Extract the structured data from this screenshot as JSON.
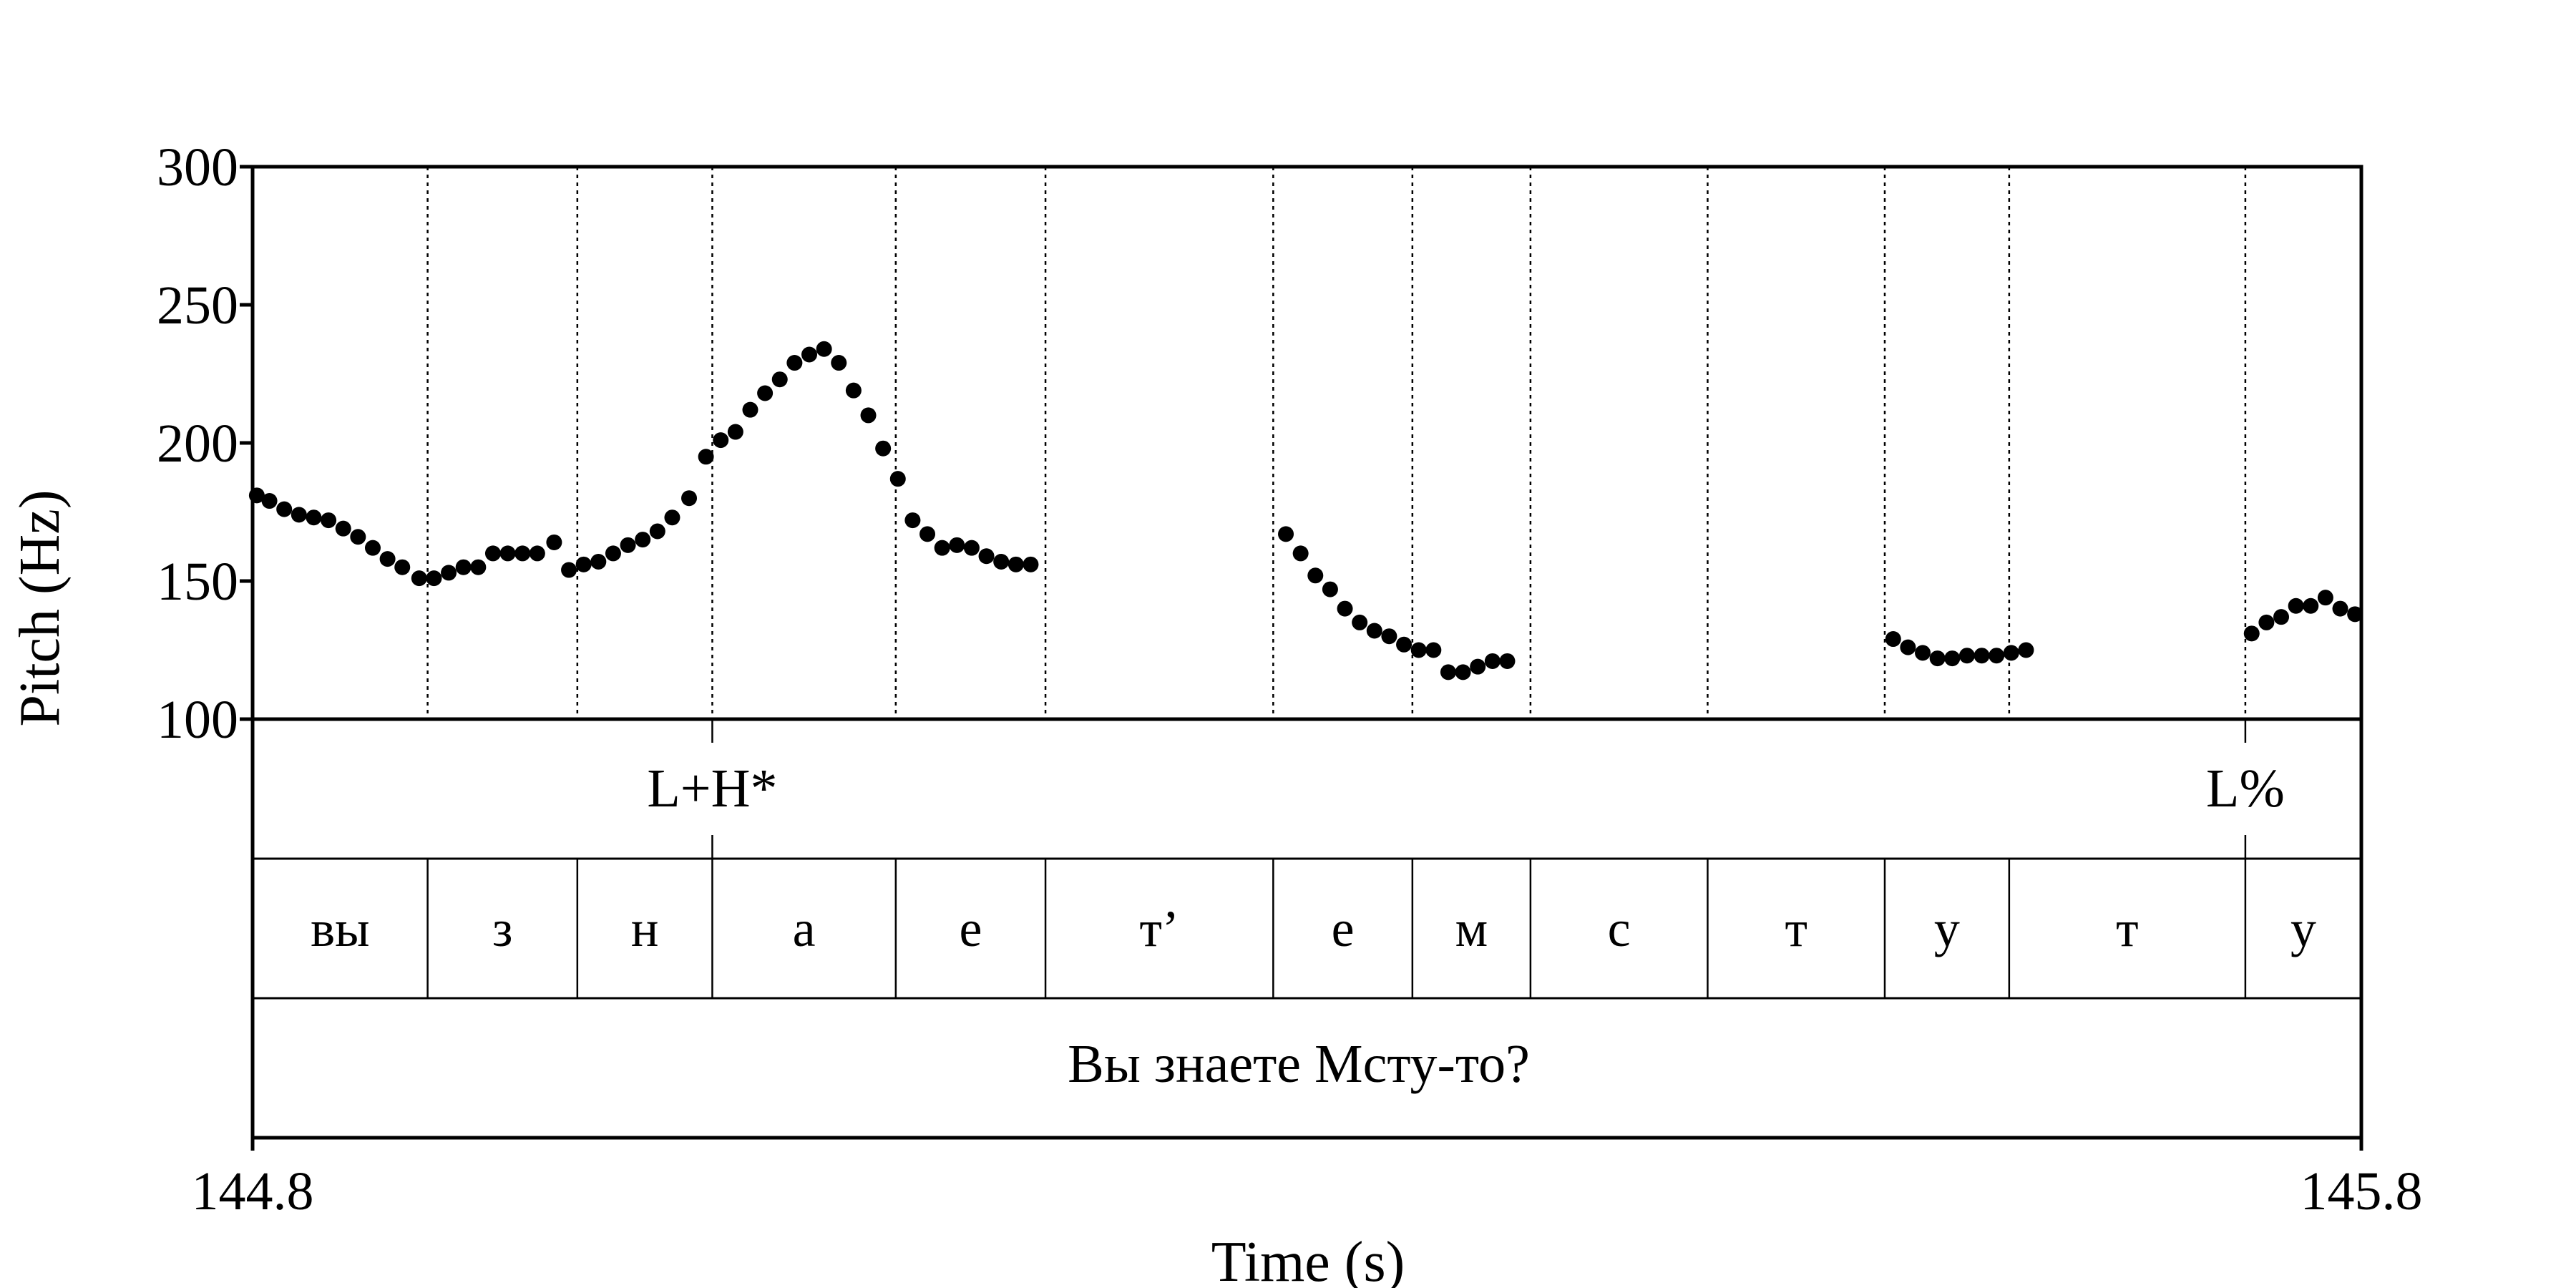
{
  "chart_data": {
    "type": "scatter",
    "title": "",
    "xlabel": "Time (s)",
    "ylabel": "Pitch (Hz)",
    "xlim": [
      144.8,
      145.8
    ],
    "ylim": [
      100,
      300
    ],
    "x_ticks": [
      "144.8",
      "145.8"
    ],
    "y_ticks": [
      "100",
      "150",
      "200",
      "250",
      "300"
    ],
    "grid": false,
    "boundaries": [
      144.883,
      144.954,
      145.018,
      145.105,
      145.176,
      145.284,
      145.35,
      145.406,
      145.49,
      145.574,
      145.633,
      145.745
    ],
    "tones": [
      {
        "label": "L+H*",
        "time": 145.018
      },
      {
        "label": "L%",
        "time": 145.745
      }
    ],
    "segments": [
      "вы",
      "з",
      "н",
      "а",
      "е",
      "т’",
      "е",
      "м",
      "с",
      "т",
      "у",
      "т",
      "у"
    ],
    "sentence": "Вы знаете Мсту-то?",
    "series": [
      {
        "points": [
          [
            144.802,
            181
          ],
          [
            144.808,
            179
          ],
          [
            144.815,
            176
          ],
          [
            144.822,
            174
          ],
          [
            144.829,
            173
          ],
          [
            144.836,
            172
          ],
          [
            144.843,
            169
          ],
          [
            144.85,
            166
          ],
          [
            144.857,
            162
          ],
          [
            144.864,
            158
          ],
          [
            144.871,
            155
          ],
          [
            144.879,
            151
          ],
          [
            144.886,
            151
          ],
          [
            144.893,
            153
          ],
          [
            144.9,
            155
          ],
          [
            144.907,
            155
          ],
          [
            144.914,
            160
          ],
          [
            144.921,
            160
          ],
          [
            144.928,
            160
          ],
          [
            144.935,
            160
          ],
          [
            144.943,
            164
          ],
          [
            144.95,
            154
          ],
          [
            144.957,
            156
          ],
          [
            144.964,
            157
          ],
          [
            144.971,
            160
          ],
          [
            144.978,
            163
          ],
          [
            144.985,
            165
          ],
          [
            144.992,
            168
          ],
          [
            144.999,
            173
          ],
          [
            145.007,
            180
          ],
          [
            145.015,
            195
          ],
          [
            145.022,
            201
          ],
          [
            145.029,
            204
          ],
          [
            145.036,
            212
          ],
          [
            145.043,
            218
          ],
          [
            145.05,
            223
          ],
          [
            145.057,
            229
          ],
          [
            145.064,
            232
          ],
          [
            145.071,
            234
          ],
          [
            145.078,
            229
          ],
          [
            145.085,
            219
          ],
          [
            145.092,
            210
          ],
          [
            145.099,
            198
          ],
          [
            145.106,
            187
          ],
          [
            145.113,
            172
          ],
          [
            145.12,
            167
          ],
          [
            145.127,
            162
          ],
          [
            145.134,
            163
          ],
          [
            145.141,
            162
          ],
          [
            145.148,
            159
          ],
          [
            145.155,
            157
          ],
          [
            145.162,
            156
          ],
          [
            145.169,
            156
          ],
          [
            145.29,
            167
          ],
          [
            145.297,
            160
          ],
          [
            145.304,
            152
          ],
          [
            145.311,
            147
          ],
          [
            145.318,
            140
          ],
          [
            145.325,
            135
          ],
          [
            145.332,
            132
          ],
          [
            145.339,
            130
          ],
          [
            145.346,
            127
          ],
          [
            145.353,
            125
          ],
          [
            145.36,
            125
          ],
          [
            145.367,
            117
          ],
          [
            145.374,
            117
          ],
          [
            145.381,
            119
          ],
          [
            145.388,
            121
          ],
          [
            145.395,
            121
          ],
          [
            145.578,
            129
          ],
          [
            145.585,
            126
          ],
          [
            145.592,
            124
          ],
          [
            145.599,
            122
          ],
          [
            145.606,
            122
          ],
          [
            145.613,
            123
          ],
          [
            145.62,
            123
          ],
          [
            145.627,
            123
          ],
          [
            145.634,
            124
          ],
          [
            145.641,
            125
          ],
          [
            145.748,
            131
          ],
          [
            145.755,
            135
          ],
          [
            145.762,
            137
          ],
          [
            145.769,
            141
          ],
          [
            145.776,
            141
          ],
          [
            145.783,
            144
          ],
          [
            145.79,
            140
          ],
          [
            145.797,
            138
          ]
        ]
      }
    ]
  }
}
